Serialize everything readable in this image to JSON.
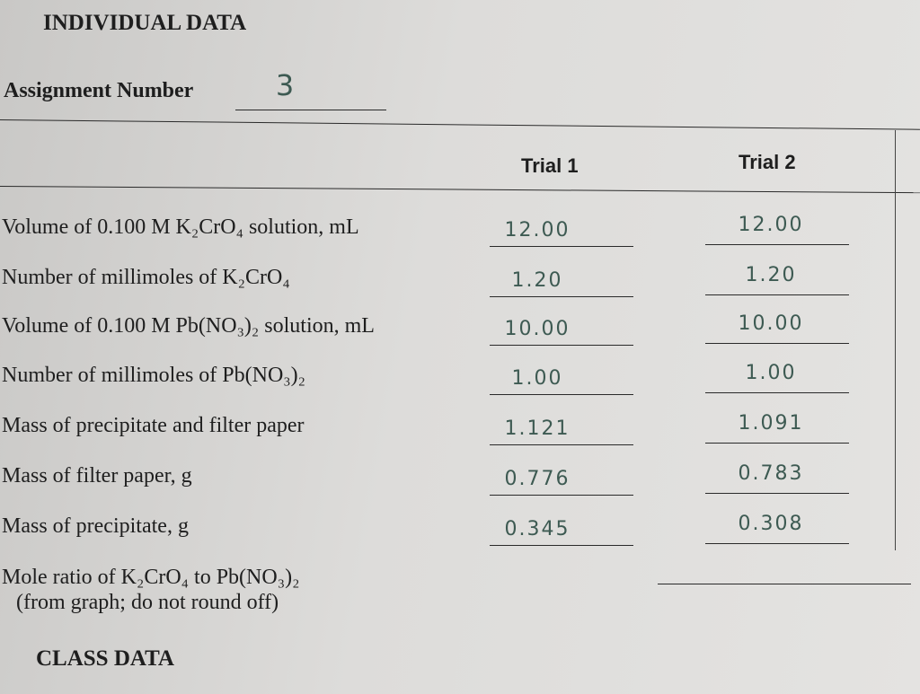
{
  "header": {
    "title": "INDIVIDUAL DATA",
    "assignment_label": "Assignment Number",
    "assignment_value": "3"
  },
  "table": {
    "columns": [
      "Trial 1",
      "Trial 2"
    ],
    "rows": [
      {
        "label": "Volume of 0.100 M K₂CrO₄ solution, mL",
        "values": [
          "12.00",
          "12.00"
        ]
      },
      {
        "label": "Number of millimoles of K₂CrO₄",
        "values": [
          "1.20",
          "1.20"
        ]
      },
      {
        "label": "Volume of 0.100 M Pb(NO₃)₂ solution, mL",
        "values": [
          "10.00",
          "10.00"
        ]
      },
      {
        "label": "Number of millimoles of Pb(NO₃)₂",
        "values": [
          "1.00",
          "1.00"
        ]
      },
      {
        "label": "Mass of precipitate and filter paper",
        "values": [
          "1.121",
          "1.091"
        ]
      },
      {
        "label": "Mass of filter paper, g",
        "values": [
          "0.776",
          "0.783"
        ]
      },
      {
        "label": "Mass of precipitate, g",
        "values": [
          "0.345",
          "0.308"
        ]
      }
    ]
  },
  "mole_ratio": {
    "label": "Mole ratio of K₂CrO₄ to Pb(NO₃)₂",
    "note": "(from graph; do not round off)"
  },
  "footer": {
    "title": "CLASS DATA"
  }
}
